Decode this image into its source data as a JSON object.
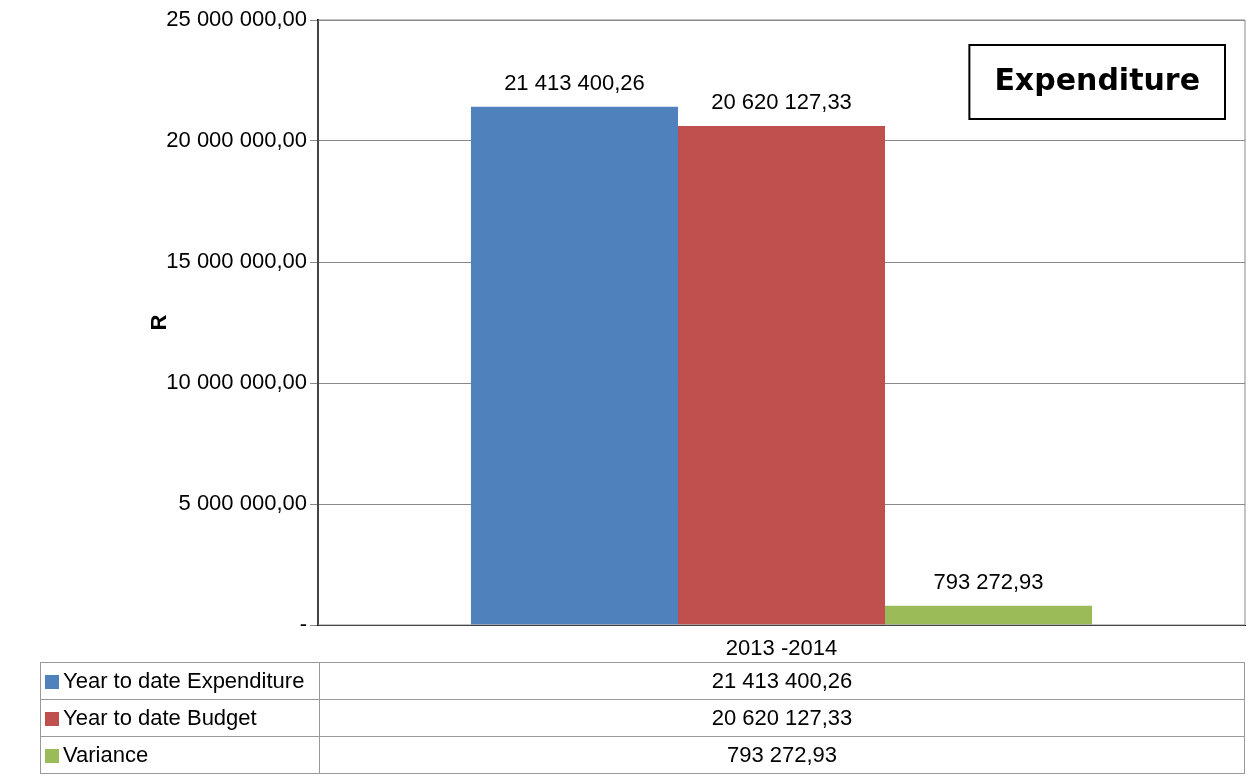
{
  "chart_data": {
    "type": "bar",
    "title": "Expenditure",
    "ylabel": "R",
    "categories": [
      "2013 -2014"
    ],
    "series": [
      {
        "name": "Year to date Expenditure",
        "color": "#4f81bd",
        "values": [
          21413400.26
        ],
        "value_labels": [
          "21 413 400,26"
        ]
      },
      {
        "name": "Year to date Budget",
        "color": "#c0504d",
        "values": [
          20620127.33
        ],
        "value_labels": [
          "20 620 127,33"
        ]
      },
      {
        "name": "Variance",
        "color": "#9bbb59",
        "values": [
          793272.93
        ],
        "value_labels": [
          "793 272,93"
        ]
      }
    ],
    "ylim": [
      0,
      25000000
    ],
    "yticks": [
      {
        "value": 0,
        "label": "-"
      },
      {
        "value": 5000000,
        "label": "5 000 000,00"
      },
      {
        "value": 10000000,
        "label": "10 000 000,00"
      },
      {
        "value": 15000000,
        "label": "15 000 000,00"
      },
      {
        "value": 20000000,
        "label": "20 000 000,00"
      },
      {
        "value": 25000000,
        "label": "25 000 000,00"
      }
    ],
    "grid": "y",
    "legend": "bottom"
  }
}
